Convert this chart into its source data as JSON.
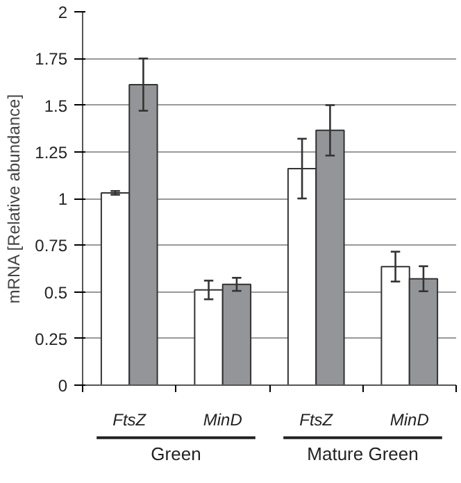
{
  "chart_data": {
    "type": "bar",
    "ylabel": "mRNA [Relative abundance]",
    "categories": [
      "FtsZ",
      "MinD",
      "FtsZ",
      "MinD"
    ],
    "annotations": [
      "Green",
      "Mature Green"
    ],
    "series": [
      {
        "color": "#ffffff",
        "values": [
          1.03,
          0.51,
          1.16,
          0.635
        ],
        "errors": [
          0.01,
          0.05,
          0.16,
          0.08
        ]
      },
      {
        "color": "#939598",
        "values": [
          1.61,
          0.54,
          1.365,
          0.57
        ],
        "errors": [
          0.14,
          0.035,
          0.135,
          0.067
        ]
      }
    ],
    "ylim": [
      0,
      2
    ],
    "yticks": [
      0,
      0.25,
      0.5,
      0.75,
      1,
      1.25,
      1.5,
      1.75,
      2
    ],
    "grid": "y"
  }
}
